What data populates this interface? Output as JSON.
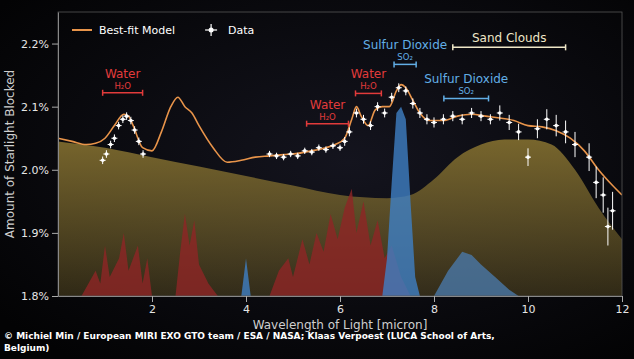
{
  "chart_data": {
    "type": "line",
    "xlabel": "Wavelength of Light [micron]",
    "ylabel": "Amount of Starlight Blocked",
    "xlim": [
      0,
      12
    ],
    "ylim": [
      1.8,
      2.25
    ],
    "xticks": [
      2,
      4,
      6,
      8,
      10,
      12
    ],
    "yticks": [
      {
        "value": 1.8,
        "label": "1.8%"
      },
      {
        "value": 1.9,
        "label": "1.9%"
      },
      {
        "value": 2.0,
        "label": "2.0%"
      },
      {
        "value": 2.1,
        "label": "2.1%"
      },
      {
        "value": 2.2,
        "label": "2.2%"
      }
    ],
    "grid": false,
    "legend": "upper left",
    "series": [
      {
        "type": "area",
        "color": "#7d6a2e",
        "x": [
          0,
          1,
          2,
          3,
          4,
          5,
          6,
          7,
          7.5,
          8,
          8.5,
          9,
          9.5,
          10,
          10.5,
          11,
          11.5,
          12
        ],
        "values": [
          2.045,
          2.035,
          2.02,
          2.005,
          1.99,
          1.975,
          1.96,
          1.955,
          1.96,
          1.985,
          2.02,
          2.04,
          2.048,
          2.048,
          2.04,
          2.0,
          1.94,
          1.89
        ]
      },
      {
        "type": "area",
        "color": "#8e2626",
        "x": [
          0.5,
          0.8,
          0.9,
          1.0,
          1.1,
          1.3,
          1.4,
          1.5,
          1.7,
          1.8,
          1.9,
          2.0,
          2.5,
          2.6,
          2.7,
          2.8,
          2.9,
          3.0,
          3.2,
          3.4,
          4.5,
          4.7,
          4.9,
          5.0,
          5.2,
          5.35,
          5.5,
          5.65,
          5.8,
          5.95,
          6.1,
          6.25,
          6.35,
          6.5,
          6.65,
          6.8,
          6.95,
          7.1,
          7.3,
          7.5
        ],
        "values": [
          1.8,
          1.84,
          1.82,
          1.88,
          1.83,
          1.86,
          1.9,
          1.84,
          1.88,
          1.82,
          1.86,
          1.8,
          1.8,
          1.87,
          1.93,
          1.88,
          1.92,
          1.85,
          1.82,
          1.8,
          1.8,
          1.84,
          1.86,
          1.83,
          1.89,
          1.85,
          1.9,
          1.87,
          1.93,
          1.89,
          1.94,
          1.97,
          1.9,
          1.95,
          1.88,
          1.92,
          1.86,
          1.88,
          1.83,
          1.8
        ]
      },
      {
        "type": "area",
        "color": "#3f7fc4",
        "x": [
          3.9,
          4.0,
          4.1
        ],
        "values": [
          1.8,
          1.86,
          1.8
        ]
      },
      {
        "type": "area",
        "color": "#3f7fc4",
        "x": [
          6.9,
          7.0,
          7.1,
          7.2,
          7.3,
          7.4,
          7.5,
          7.6,
          7.7
        ],
        "values": [
          1.8,
          1.86,
          1.98,
          2.09,
          2.1,
          2.08,
          1.95,
          1.83,
          1.8
        ]
      },
      {
        "type": "area",
        "color": "#4a78a8",
        "x": [
          8.0,
          8.3,
          8.6,
          8.8,
          9.0,
          9.3,
          9.6,
          9.8
        ],
        "values": [
          1.8,
          1.84,
          1.87,
          1.865,
          1.85,
          1.83,
          1.81,
          1.8
        ]
      },
      {
        "name": "Best-fit Model",
        "type": "line",
        "color": "#e8944a",
        "x": [
          0,
          0.3,
          0.6,
          0.8,
          1.0,
          1.2,
          1.4,
          1.5,
          1.6,
          1.8,
          2.0,
          2.2,
          2.4,
          2.55,
          2.7,
          2.85,
          3.0,
          3.3,
          3.6,
          3.9,
          4.2,
          4.5,
          4.8,
          5.1,
          5.4,
          5.7,
          5.9,
          6.1,
          6.25,
          6.35,
          6.45,
          6.6,
          6.75,
          6.9,
          7.05,
          7.2,
          7.3,
          7.4,
          7.55,
          7.7,
          7.9,
          8.2,
          8.5,
          8.8,
          9.1,
          9.4,
          9.7,
          10.0,
          10.3,
          10.6,
          10.9,
          11.2,
          11.5,
          11.8,
          12.0
        ],
        "values": [
          2.05,
          2.045,
          2.04,
          2.042,
          2.05,
          2.07,
          2.088,
          2.085,
          2.07,
          2.035,
          2.03,
          2.06,
          2.1,
          2.115,
          2.1,
          2.09,
          2.07,
          2.035,
          2.012,
          2.015,
          2.02,
          2.022,
          2.024,
          2.026,
          2.03,
          2.035,
          2.04,
          2.05,
          2.08,
          2.1,
          2.085,
          2.07,
          2.095,
          2.1,
          2.1,
          2.125,
          2.135,
          2.13,
          2.11,
          2.09,
          2.078,
          2.078,
          2.085,
          2.088,
          2.085,
          2.082,
          2.078,
          2.07,
          2.068,
          2.062,
          2.05,
          2.03,
          2.0,
          1.975,
          1.96
        ]
      },
      {
        "name": "Data",
        "type": "scatter",
        "marker": "circle",
        "color": "#ffffff",
        "x": [
          0.95,
          1.03,
          1.12,
          1.2,
          1.29,
          1.38,
          1.46,
          1.55,
          1.63,
          1.72,
          1.81,
          4.5,
          4.65,
          4.8,
          4.95,
          5.1,
          5.25,
          5.4,
          5.55,
          5.7,
          5.85,
          6.0,
          6.1,
          6.2,
          6.35,
          6.5,
          6.65,
          6.8,
          6.95,
          7.1,
          7.25,
          7.4,
          7.55,
          7.7,
          7.85,
          8.0,
          8.2,
          8.4,
          8.6,
          8.8,
          9.0,
          9.2,
          9.4,
          9.6,
          9.8,
          10.0,
          10.2,
          10.4,
          10.6,
          10.8,
          11.0,
          11.3,
          11.45,
          11.6,
          11.7,
          11.8
        ],
        "values": [
          2.015,
          2.025,
          2.04,
          2.05,
          2.07,
          2.08,
          2.085,
          2.078,
          2.063,
          2.045,
          2.025,
          2.025,
          2.022,
          2.02,
          2.025,
          2.022,
          2.03,
          2.028,
          2.035,
          2.032,
          2.038,
          2.035,
          2.045,
          2.06,
          2.09,
          2.08,
          2.07,
          2.1,
          2.09,
          2.115,
          2.13,
          2.125,
          2.105,
          2.09,
          2.08,
          2.075,
          2.08,
          2.085,
          2.08,
          2.09,
          2.085,
          2.08,
          2.09,
          2.075,
          2.06,
          2.02,
          2.065,
          2.08,
          2.07,
          2.06,
          2.04,
          2.02,
          1.98,
          1.96,
          1.91,
          1.935
        ],
        "errors": [
          0.006,
          0.006,
          0.006,
          0.006,
          0.006,
          0.006,
          0.006,
          0.006,
          0.006,
          0.006,
          0.006,
          0.005,
          0.005,
          0.005,
          0.005,
          0.005,
          0.005,
          0.005,
          0.005,
          0.005,
          0.005,
          0.005,
          0.007,
          0.007,
          0.007,
          0.007,
          0.007,
          0.007,
          0.007,
          0.007,
          0.007,
          0.007,
          0.008,
          0.008,
          0.008,
          0.008,
          0.008,
          0.008,
          0.008,
          0.008,
          0.008,
          0.008,
          0.012,
          0.012,
          0.013,
          0.014,
          0.015,
          0.016,
          0.017,
          0.018,
          0.02,
          0.022,
          0.025,
          0.028,
          0.03,
          0.03
        ]
      }
    ],
    "annotations": [
      {
        "text": "Water",
        "label": "H₂O",
        "color": "#e23b3b",
        "x": [
          0.95,
          1.8
        ],
        "y": 2.122
      },
      {
        "text": "Water",
        "label": "H₂O",
        "color": "#e23b3b",
        "x": [
          5.29,
          6.18
        ],
        "y": 2.073
      },
      {
        "text": "Water",
        "label": "H₂O",
        "color": "#e23b3b",
        "x": [
          6.33,
          6.88
        ],
        "y": 2.121
      },
      {
        "text": "Sulfur Dioxide",
        "label": "SO₂",
        "color": "#62aee6",
        "x": [
          7.15,
          7.62
        ],
        "y": 2.167
      },
      {
        "text": "Sulfur Dioxide",
        "label": "SO₂",
        "color": "#62aee6",
        "x": [
          8.21,
          9.16
        ],
        "y": 2.113
      },
      {
        "text": "Sand Clouds",
        "color": "#efe7c8",
        "x": [
          8.4,
          10.8
        ],
        "y": 2.194
      }
    ],
    "credit": [
      "© Michiel Min / European MIRI EXO GTO team / ESA / NASA; Klaas Verpoest (LUCA School of Arts,",
      "Belgium)"
    ]
  }
}
